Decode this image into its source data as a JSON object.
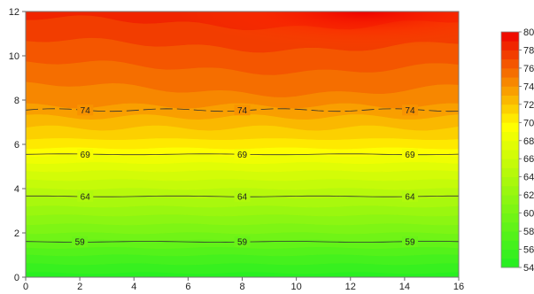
{
  "chart_data": {
    "type": "heatmap",
    "subtype": "filled-contour",
    "title": "",
    "xlabel": "",
    "ylabel": "",
    "xlim": [
      0,
      16
    ],
    "ylim": [
      0,
      12
    ],
    "x_ticks": [
      0,
      2,
      4,
      6,
      8,
      10,
      12,
      14,
      16
    ],
    "y_ticks": [
      0,
      2,
      4,
      6,
      8,
      10,
      12
    ],
    "grid": false,
    "colorbar": {
      "position": "right",
      "range": [
        54,
        80
      ],
      "ticks": [
        54,
        56,
        58,
        60,
        62,
        64,
        66,
        68,
        70,
        72,
        74,
        76,
        78,
        80
      ],
      "low_color": "#22ee22",
      "mid_color": "#ffff00",
      "high_color": "#ee0000"
    },
    "contour_lines": [
      {
        "level": 59,
        "y": 1.6,
        "label_x": [
          2,
          8,
          14.2
        ]
      },
      {
        "level": 64,
        "y": 3.65,
        "label_x": [
          2.2,
          8,
          14.2
        ]
      },
      {
        "level": 69,
        "y": 5.55,
        "label_x": [
          2.2,
          8,
          14.2
        ]
      },
      {
        "level": 74,
        "y": 7.55,
        "label_x": [
          2.2,
          8,
          14.2
        ]
      }
    ],
    "value_profile": [
      {
        "y": 0,
        "value": 54.5
      },
      {
        "y": 1,
        "value": 57
      },
      {
        "y": 2,
        "value": 60
      },
      {
        "y": 3,
        "value": 62.5
      },
      {
        "y": 4,
        "value": 65
      },
      {
        "y": 5,
        "value": 67.5
      },
      {
        "y": 6,
        "value": 70.5
      },
      {
        "y": 7,
        "value": 72.5
      },
      {
        "y": 8,
        "value": 74.5
      },
      {
        "y": 9,
        "value": 75.5
      },
      {
        "y": 10,
        "value": 76.5
      },
      {
        "y": 11,
        "value": 77.5
      },
      {
        "y": 12,
        "value": 78.5
      }
    ],
    "hotspot": {
      "x": 12.5,
      "y": 12,
      "value": 80
    }
  }
}
